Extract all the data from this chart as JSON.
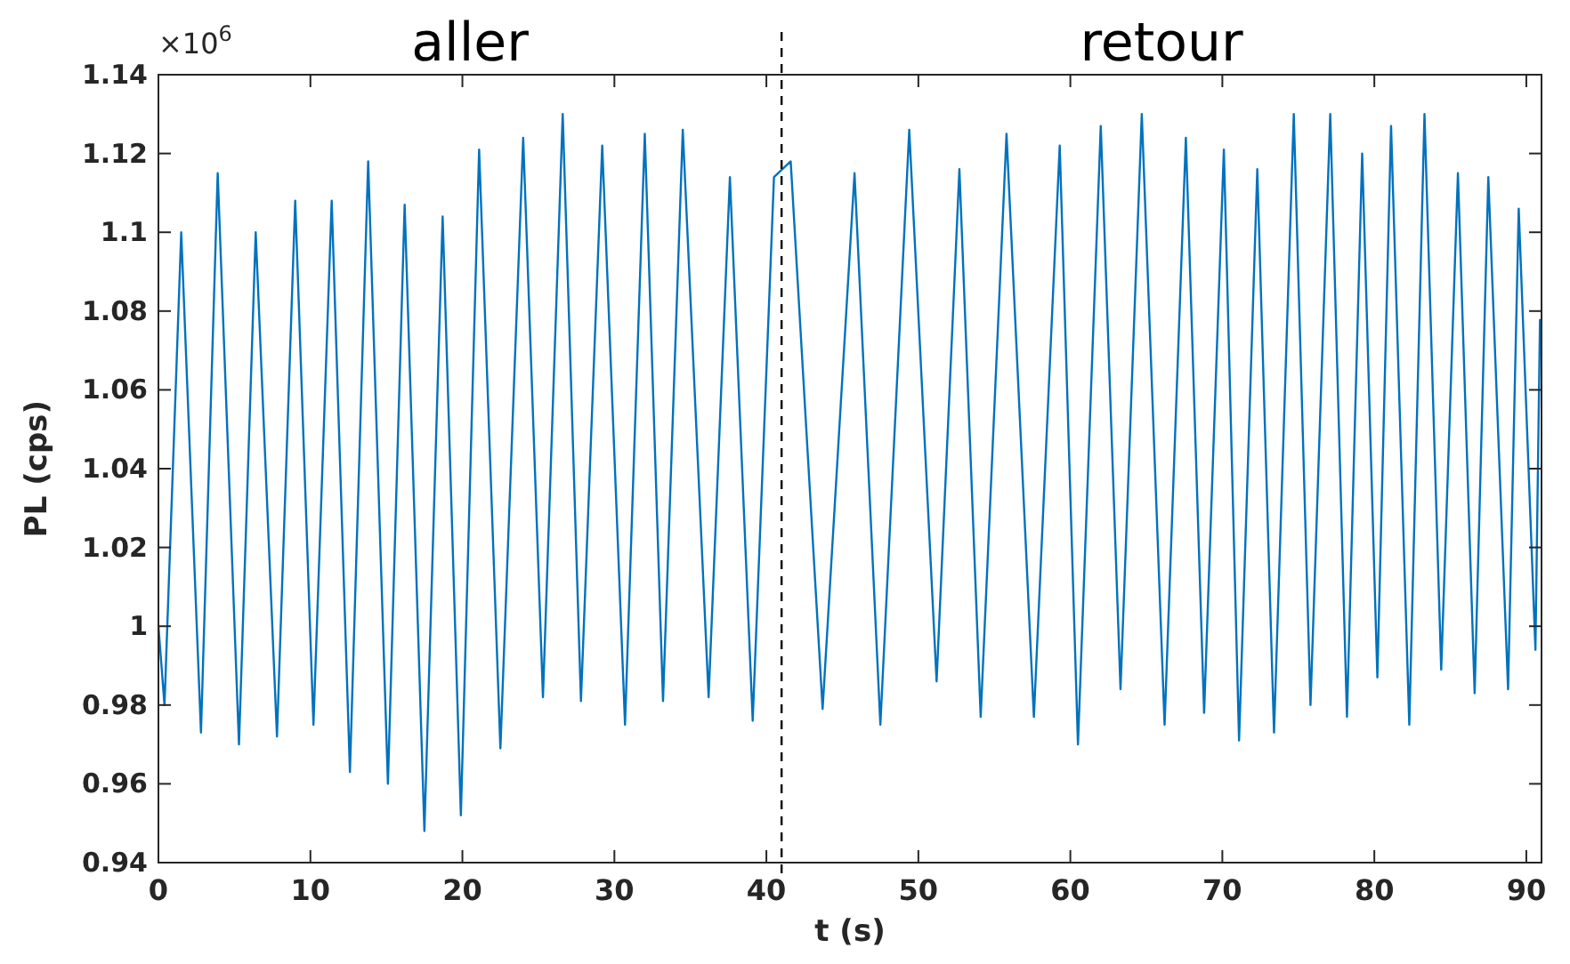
{
  "chart_data": {
    "type": "line",
    "xlabel": "t (s)",
    "ylabel": "PL (cps)",
    "annotations": [
      "×10$^{6}$",
      "aller",
      "retour"
    ],
    "xlim": [
      0,
      91
    ],
    "xticks": [
      0,
      10,
      20,
      30,
      40,
      50,
      60,
      70,
      80,
      90
    ],
    "ylim": [
      0.94,
      1.14
    ],
    "yticks": [
      0.94,
      0.96,
      0.98,
      1,
      1.02,
      1.04,
      1.06,
      1.08,
      1.1,
      1.12,
      1.14
    ],
    "grid": false,
    "line_style": "solid",
    "marker": "none",
    "ref_lines": [
      {
        "axis": "x",
        "value": 41,
        "color": "#000000",
        "line_style": "dashed"
      }
    ],
    "series": [
      {
        "color": "#0072bd",
        "x": [
          0,
          0.4,
          1.5,
          2.8,
          3.9,
          5.3,
          6.4,
          7.8,
          9.0,
          10.2,
          11.4,
          12.6,
          13.8,
          15.1,
          16.2,
          17.5,
          18.7,
          19.9,
          21.1,
          22.5,
          24.0,
          25.3,
          26.6,
          27.8,
          29.2,
          30.7,
          32.0,
          33.2,
          34.5,
          36.2,
          37.6,
          39.1,
          40.5,
          41.6,
          43.7,
          45.8,
          47.5,
          49.4,
          51.2,
          52.7,
          54.1,
          55.8,
          57.6,
          59.3,
          60.5,
          62.0,
          63.3,
          64.7,
          66.2,
          67.6,
          68.8,
          70.1,
          71.1,
          72.3,
          73.4,
          74.7,
          75.8,
          77.1,
          78.2,
          79.2,
          80.2,
          81.1,
          82.3,
          83.3,
          84.4,
          85.5,
          86.6,
          87.5,
          88.8,
          89.5,
          90.6,
          90.9
        ],
        "values": [
          1.0,
          0.98,
          1.1,
          0.973,
          1.115,
          0.97,
          1.1,
          0.972,
          1.108,
          0.975,
          1.108,
          0.963,
          1.118,
          0.96,
          1.107,
          0.948,
          1.104,
          0.952,
          1.121,
          0.969,
          1.124,
          0.982,
          1.13,
          0.981,
          1.122,
          0.975,
          1.125,
          0.981,
          1.126,
          0.982,
          1.114,
          0.976,
          1.114,
          1.118,
          0.979,
          1.115,
          0.975,
          1.126,
          0.986,
          1.116,
          0.977,
          1.125,
          0.977,
          1.122,
          0.97,
          1.127,
          0.984,
          1.13,
          0.975,
          1.124,
          0.978,
          1.121,
          0.971,
          1.116,
          0.973,
          1.13,
          0.98,
          1.13,
          0.977,
          1.12,
          0.987,
          1.127,
          0.975,
          1.13,
          0.989,
          1.115,
          0.983,
          1.114,
          0.984,
          1.106,
          0.994,
          1.078
        ]
      }
    ]
  }
}
